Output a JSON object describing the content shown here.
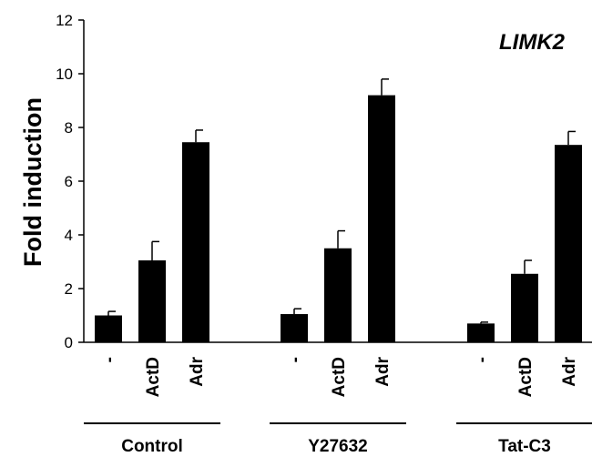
{
  "chart_data": {
    "type": "bar",
    "title": "LIMK2",
    "ylabel": "Fold induction",
    "ylim": [
      0,
      12
    ],
    "yticks": [
      "0",
      "2",
      "4",
      "6",
      "8",
      "10",
      "12"
    ],
    "grid": false,
    "legend": "none",
    "bar_color": "#000000",
    "groups": [
      {
        "name": "Control",
        "categories": [
          "-",
          "ActD",
          "Adr"
        ],
        "values": [
          1.0,
          3.05,
          7.45
        ],
        "errors": [
          0.15,
          0.7,
          0.45
        ]
      },
      {
        "name": "Y27632",
        "categories": [
          "-",
          "ActD",
          "Adr"
        ],
        "values": [
          1.05,
          3.5,
          9.2
        ],
        "errors": [
          0.2,
          0.65,
          0.6
        ]
      },
      {
        "name": "Tat-C3",
        "categories": [
          "-",
          "ActD",
          "Adr"
        ],
        "values": [
          0.7,
          2.55,
          7.35
        ],
        "errors": [
          0.05,
          0.5,
          0.5
        ]
      }
    ]
  }
}
